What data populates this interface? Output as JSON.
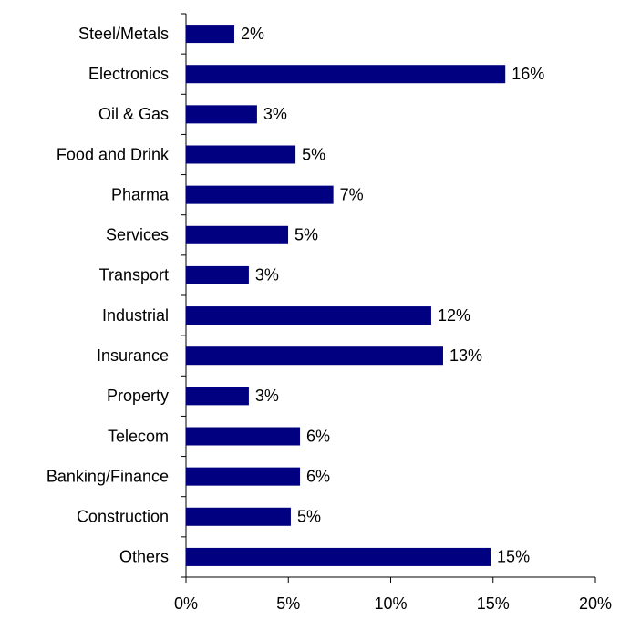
{
  "chart_data": {
    "type": "bar",
    "orientation": "horizontal",
    "categories": [
      "Steel/Metals",
      "Electronics",
      "Oil & Gas",
      "Food and Drink",
      "Pharma",
      "Services",
      "Transport",
      "Industrial",
      "Insurance",
      "Property",
      "Telecom",
      "Banking/Finance",
      "Construction",
      "Others"
    ],
    "values": [
      2.36,
      15.6,
      3.47,
      5.35,
      7.2,
      4.99,
      3.07,
      11.98,
      12.56,
      3.07,
      5.57,
      5.57,
      5.12,
      14.88
    ],
    "value_labels": [
      "2%",
      "16%",
      "3%",
      "5%",
      "7%",
      "5%",
      "3%",
      "12%",
      "13%",
      "3%",
      "6%",
      "6%",
      "5%",
      "15%"
    ],
    "color": "#000080",
    "xlim": [
      0,
      20
    ],
    "xticks": [
      {
        "value": 0,
        "label": "0%"
      },
      {
        "value": 5,
        "label": "5%"
      },
      {
        "value": 10,
        "label": "10%"
      },
      {
        "value": 15,
        "label": "15%"
      },
      {
        "value": 20,
        "label": "20%"
      }
    ],
    "grid": false
  }
}
